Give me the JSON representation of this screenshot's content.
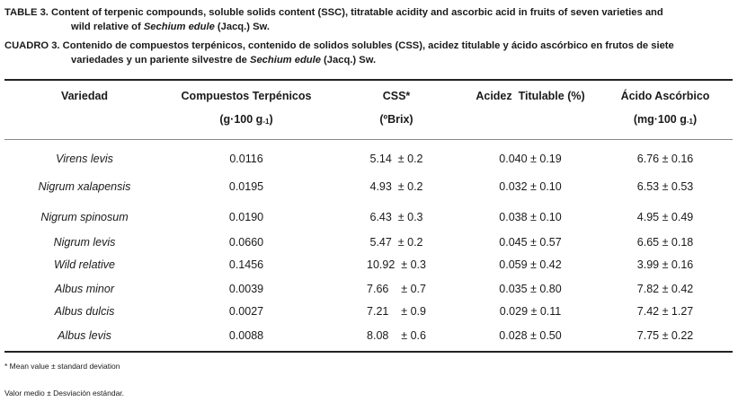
{
  "caption_en": {
    "label": "TABLE 3.",
    "line1_text": "Content of terpenic compounds, soluble solids content (SSC), titratable acidity and ascorbic acid in fruits of seven varieties and",
    "line2_pre": "wild relative of ",
    "line2_species": "Sechium edule",
    "line2_post": " (Jacq.) Sw."
  },
  "caption_es": {
    "label": "CUADRO 3.",
    "line1_text": "Contenido de compuestos terpénicos, contenido de solidos solubles (CSS), acidez titulable  y ácido ascórbico en frutos de siete",
    "line2_pre": "variedades y un pariente silvestre de ",
    "line2_species": "Sechium edule",
    "line2_post": " (Jacq.) Sw."
  },
  "headers": {
    "variety": "Variedad",
    "terpenic": "Compuestos Terpénicos",
    "terpenic_unit_pre": "(g·100 g",
    "terpenic_unit_sub": "-1",
    "terpenic_unit_post": ")",
    "css": "CSS*",
    "css_unit": "(ºBrix)",
    "acidity": "Acidez  Titulable (%)",
    "ascorbic": "Ácido Ascórbico",
    "ascorbic_unit_pre": "(mg·100 g",
    "ascorbic_unit_sub": "-1",
    "ascorbic_unit_post": ")"
  },
  "rows": [
    {
      "variety": "Virens levis",
      "terpenic": "0.0116",
      "css": "5.14  ± 0.2",
      "acidity": "0.040 ± 0.19",
      "ascorbic": "6.76 ± 0.16"
    },
    {
      "variety": "Nigrum xalapensis",
      "terpenic": "0.0195",
      "css": "4.93  ± 0.2",
      "acidity": "0.032 ± 0.10",
      "ascorbic": "6.53 ± 0.53"
    },
    {
      "variety": "Nigrum spinosum",
      "terpenic": "0.0190",
      "css": "6.43  ± 0.3",
      "acidity": "0.038 ± 0.10",
      "ascorbic": "4.95 ± 0.49"
    },
    {
      "variety": "Nigrum levis",
      "terpenic": "0.0660",
      "css": "5.47  ± 0.2",
      "acidity": "0.045 ± 0.57",
      "ascorbic": "6.65 ± 0.18"
    },
    {
      "variety": "Wild relative",
      "terpenic": "0.1456",
      "css": "10.92  ± 0.3",
      "acidity": "0.059 ± 0.42",
      "ascorbic": "3.99 ± 0.16"
    },
    {
      "variety": "Albus minor",
      "terpenic": "0.0039",
      "css": "7.66    ± 0.7",
      "acidity": "0.035 ± 0.80",
      "ascorbic": "7.82 ± 0.42"
    },
    {
      "variety": "Albus dulcis",
      "terpenic": "0.0027",
      "css": "7.21    ± 0.9",
      "acidity": "0.029 ± 0.11",
      "ascorbic": "7.42 ± 1.27"
    },
    {
      "variety": "Albus levis",
      "terpenic": "0.0088",
      "css": "8.08    ± 0.6",
      "acidity": "0.028 ± 0.50",
      "ascorbic": "7.75 ± 0.22"
    }
  ],
  "footnotes": {
    "en": "* Mean value ± standard deviation",
    "es": "Valor medio ± Desviación estándar."
  }
}
